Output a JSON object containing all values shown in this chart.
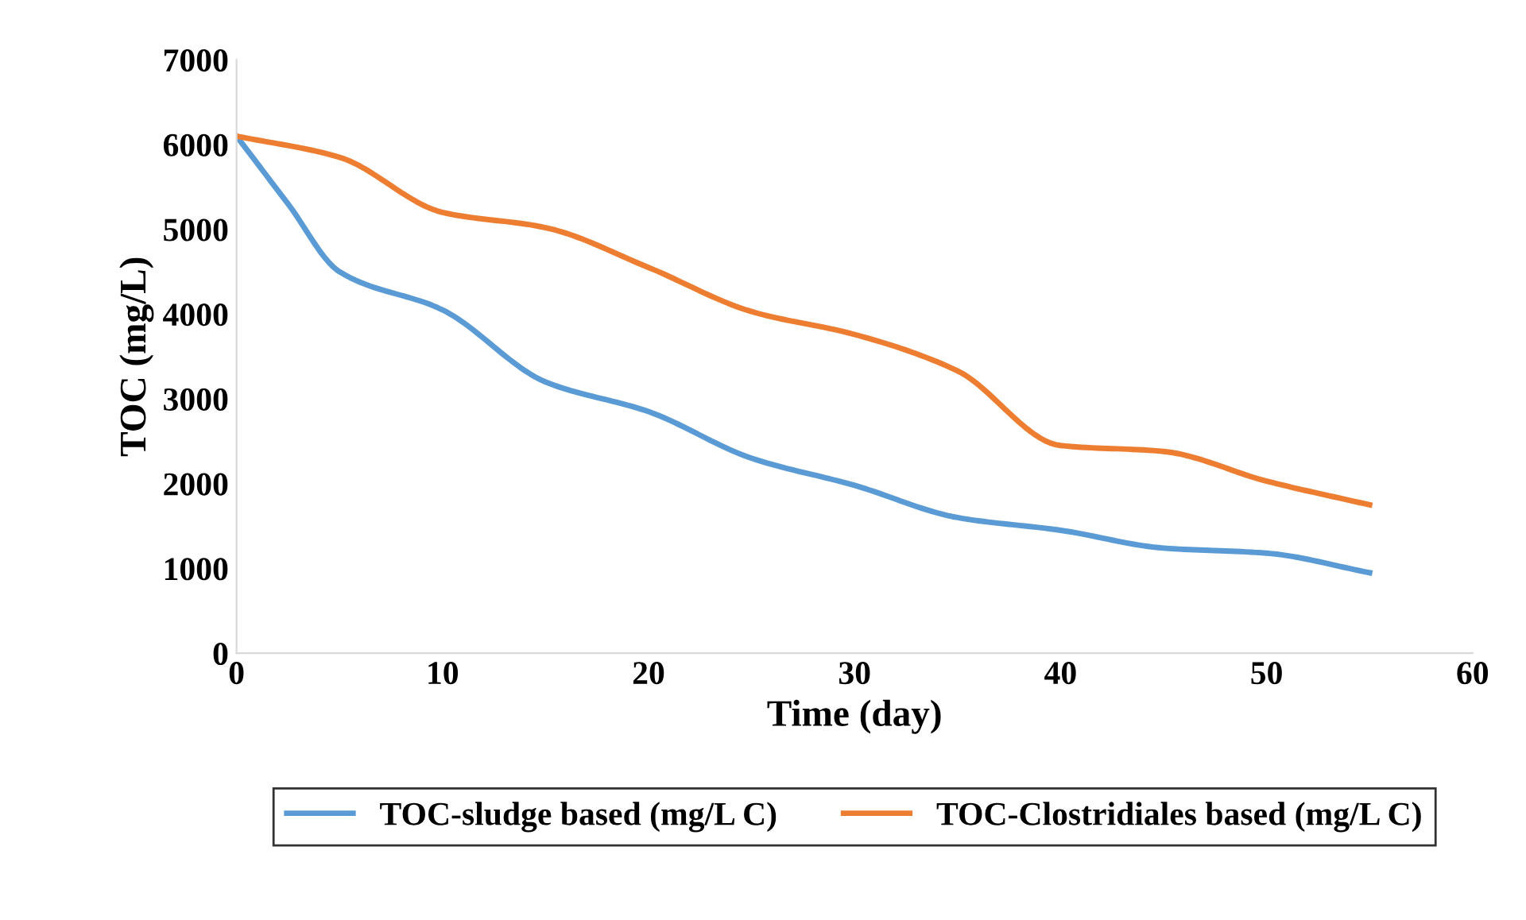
{
  "chart_data": {
    "type": "line",
    "xlabel": "Time (day)",
    "ylabel": "TOC (mg/L)",
    "x": [
      0,
      5,
      10,
      15,
      20,
      25,
      30,
      35,
      40,
      45,
      50,
      55
    ],
    "series": [
      {
        "name": "TOC-sludge based (mg/L C)",
        "color": "#5b9bd5",
        "x": [
          0,
          2.5,
          5,
          10,
          15,
          20,
          25,
          30,
          35,
          40,
          45,
          50,
          55
        ],
        "values": [
          6100,
          5300,
          4500,
          4050,
          3200,
          2850,
          2300,
          1980,
          1600,
          1450,
          1240,
          1180,
          950
        ]
      },
      {
        "name": "TOC-Clostridiales based (mg/L C)",
        "color": "#ed7d31",
        "values": [
          6100,
          5850,
          5200,
          5020,
          4550,
          4030,
          3760,
          3330,
          2450,
          2380,
          2030,
          1750
        ]
      }
    ],
    "xlim": [
      0,
      60
    ],
    "xticks": [
      0,
      10,
      20,
      30,
      40,
      50,
      60
    ],
    "ylim": [
      0,
      7000
    ],
    "yticks": [
      0,
      1000,
      2000,
      3000,
      4000,
      5000,
      6000,
      7000
    ],
    "grid": false,
    "legend": "bottom",
    "marker": "none",
    "line_style": "solid"
  }
}
